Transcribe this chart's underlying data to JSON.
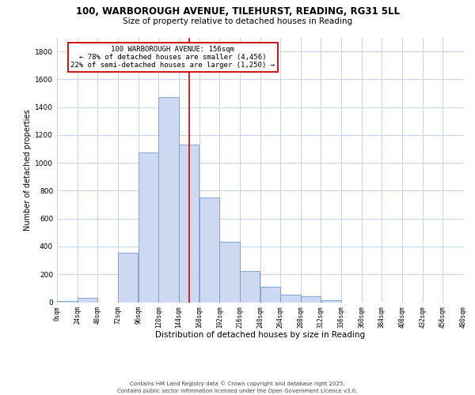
{
  "title": "100, WARBOROUGH AVENUE, TILEHURST, READING, RG31 5LL",
  "subtitle": "Size of property relative to detached houses in Reading",
  "xlabel": "Distribution of detached houses by size in Reading",
  "ylabel": "Number of detached properties",
  "bar_color": "#ccd9f0",
  "bar_edge_color": "#7799cc",
  "background_color": "#ffffff",
  "grid_color": "#c5d5e8",
  "annotation_box_color": "#cc0000",
  "vline_color": "#cc0000",
  "vline_x": 156,
  "annotation_line1": "100 WARBOROUGH AVENUE: 156sqm",
  "annotation_line2": "← 78% of detached houses are smaller (4,456)",
  "annotation_line3": "22% of semi-detached houses are larger (1,250) →",
  "footer_line1": "Contains HM Land Registry data © Crown copyright and database right 2025.",
  "footer_line2": "Contains public sector information licensed under the Open Government Licence v3.0.",
  "bin_edges": [
    0,
    24,
    48,
    72,
    96,
    120,
    144,
    168,
    192,
    216,
    240,
    264,
    288,
    312,
    336,
    360,
    384,
    408,
    432,
    456,
    480
  ],
  "bin_counts": [
    10,
    30,
    0,
    355,
    1075,
    1470,
    1130,
    750,
    435,
    225,
    110,
    55,
    45,
    15,
    0,
    0,
    0,
    0,
    0,
    0
  ],
  "ylim": [
    0,
    1900
  ],
  "yticks": [
    0,
    200,
    400,
    600,
    800,
    1000,
    1200,
    1400,
    1600,
    1800
  ],
  "xtick_labels": [
    "0sqm",
    "24sqm",
    "48sqm",
    "72sqm",
    "96sqm",
    "120sqm",
    "144sqm",
    "168sqm",
    "192sqm",
    "216sqm",
    "240sqm",
    "264sqm",
    "288sqm",
    "312sqm",
    "336sqm",
    "360sqm",
    "384sqm",
    "408sqm",
    "432sqm",
    "456sqm",
    "480sqm"
  ]
}
